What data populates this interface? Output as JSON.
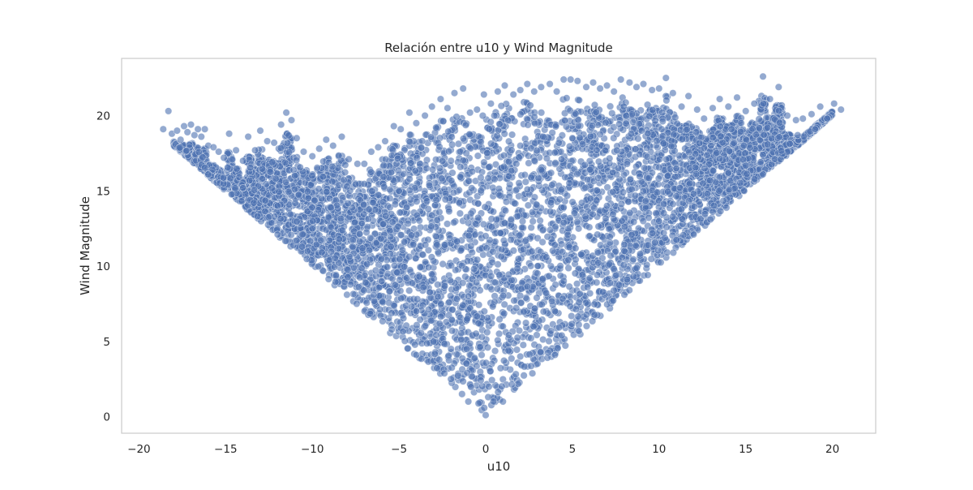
{
  "chart_data": {
    "type": "scatter",
    "title": "Relación entre u10 y Wind Magnitude",
    "xlabel": "u10",
    "ylabel": "Wind Magnitude",
    "xlim": [
      -21.0,
      22.5
    ],
    "ylim": [
      -1.1,
      23.8
    ],
    "xticks": [
      -20,
      -15,
      -10,
      -5,
      0,
      5,
      10,
      15,
      20
    ],
    "xtick_labels": [
      "−20",
      "−15",
      "−10",
      "−5",
      "0",
      "5",
      "10",
      "15",
      "20"
    ],
    "yticks": [
      0,
      5,
      10,
      15,
      20
    ],
    "ytick_labels": [
      "0",
      "5",
      "10",
      "15",
      "20"
    ],
    "grid": false,
    "legend": "none",
    "point_color": "#4c72b0",
    "point_edge_color": "#ffffff",
    "point_alpha": 0.6,
    "series": [
      {
        "values_note": "",
        "points": [
          [
            -18.6,
            19.1
          ],
          [
            -18.3,
            20.3
          ],
          [
            -18.1,
            18.8
          ],
          [
            -17.8,
            19.0
          ],
          [
            -17.6,
            18.4
          ],
          [
            -17.4,
            19.3
          ],
          [
            -17.2,
            18.9
          ],
          [
            -17.0,
            19.4
          ],
          [
            -16.8,
            18.7
          ],
          [
            -16.6,
            19.1
          ],
          [
            -16.4,
            18.6
          ],
          [
            -16.2,
            19.1
          ],
          [
            -16.0,
            18.0
          ],
          [
            -15.7,
            17.9
          ],
          [
            -15.4,
            17.6
          ],
          [
            -15.1,
            17.2
          ],
          [
            -14.8,
            18.8
          ],
          [
            -14.4,
            17.7
          ],
          [
            -14.0,
            17.0
          ],
          [
            -13.7,
            18.6
          ],
          [
            -13.3,
            17.7
          ],
          [
            -13.0,
            19.0
          ],
          [
            -12.6,
            18.3
          ],
          [
            -12.2,
            18.2
          ],
          [
            -11.8,
            19.4
          ],
          [
            -11.5,
            20.2
          ],
          [
            -11.2,
            19.7
          ],
          [
            -10.9,
            18.5
          ],
          [
            -10.5,
            17.6
          ],
          [
            -10.0,
            17.3
          ],
          [
            -9.6,
            17.8
          ],
          [
            -9.2,
            18.4
          ],
          [
            -8.8,
            18.0
          ],
          [
            -8.3,
            18.6
          ],
          [
            -7.9,
            17.1
          ],
          [
            -7.4,
            16.8
          ],
          [
            -7.0,
            16.8
          ],
          [
            -6.6,
            17.6
          ],
          [
            -6.2,
            17.9
          ],
          [
            -5.8,
            18.3
          ],
          [
            -5.3,
            19.3
          ],
          [
            -4.9,
            19.1
          ],
          [
            -4.4,
            20.2
          ],
          [
            -4.0,
            19.5
          ],
          [
            -3.5,
            20.0
          ],
          [
            -3.1,
            20.6
          ],
          [
            -2.6,
            21.1
          ],
          [
            -2.2,
            20.5
          ],
          [
            -1.8,
            21.5
          ],
          [
            -1.3,
            21.8
          ],
          [
            -0.9,
            20.2
          ],
          [
            -0.5,
            20.4
          ],
          [
            -0.1,
            21.4
          ],
          [
            0.3,
            20.8
          ],
          [
            0.7,
            21.6
          ],
          [
            1.1,
            22.0
          ],
          [
            1.6,
            21.4
          ],
          [
            2.0,
            21.7
          ],
          [
            2.4,
            22.1
          ],
          [
            2.8,
            21.6
          ],
          [
            3.2,
            21.9
          ],
          [
            3.7,
            22.1
          ],
          [
            4.1,
            21.6
          ],
          [
            4.5,
            22.4
          ],
          [
            4.9,
            22.4
          ],
          [
            5.3,
            22.3
          ],
          [
            5.8,
            21.9
          ],
          [
            6.2,
            22.2
          ],
          [
            6.6,
            21.8
          ],
          [
            7.0,
            22.0
          ],
          [
            7.4,
            21.6
          ],
          [
            7.8,
            22.4
          ],
          [
            8.3,
            22.2
          ],
          [
            8.7,
            21.9
          ],
          [
            9.1,
            22.1
          ],
          [
            9.6,
            21.7
          ],
          [
            10.0,
            21.8
          ],
          [
            10.4,
            22.5
          ],
          [
            10.8,
            21.5
          ],
          [
            11.3,
            20.6
          ],
          [
            11.7,
            21.3
          ],
          [
            12.2,
            20.4
          ],
          [
            12.6,
            19.8
          ],
          [
            13.1,
            20.5
          ],
          [
            13.5,
            21.1
          ],
          [
            14.0,
            20.6
          ],
          [
            14.5,
            21.2
          ],
          [
            15.0,
            20.3
          ],
          [
            15.5,
            20.8
          ],
          [
            16.0,
            22.6
          ],
          [
            16.4,
            21.1
          ],
          [
            16.9,
            21.9
          ],
          [
            17.4,
            20.0
          ],
          [
            17.9,
            19.7
          ],
          [
            18.3,
            19.8
          ],
          [
            18.8,
            20.1
          ],
          [
            19.3,
            20.6
          ],
          [
            19.7,
            19.8
          ],
          [
            20.1,
            20.8
          ],
          [
            20.5,
            20.4
          ],
          [
            -14.0,
            15.2
          ],
          [
            -12.0,
            14.0
          ],
          [
            -10.0,
            12.5
          ],
          [
            -8.0,
            11.0
          ],
          [
            -6.0,
            9.0
          ],
          [
            -4.0,
            7.0
          ],
          [
            -2.0,
            4.5
          ],
          [
            0.0,
            0.1
          ],
          [
            2.0,
            4.0
          ],
          [
            4.0,
            7.0
          ],
          [
            6.0,
            9.2
          ],
          [
            8.0,
            11.0
          ],
          [
            10.0,
            13.0
          ],
          [
            12.0,
            14.8
          ],
          [
            14.0,
            16.2
          ],
          [
            16.0,
            17.4
          ],
          [
            18.0,
            18.7
          ],
          [
            -16.0,
            16.1
          ],
          [
            -12.0,
            12.1
          ],
          [
            -8.0,
            8.1
          ],
          [
            -4.0,
            4.1
          ],
          [
            -1.0,
            1.0
          ],
          [
            1.0,
            1.0
          ],
          [
            4.0,
            4.1
          ],
          [
            8.0,
            8.1
          ],
          [
            12.0,
            12.1
          ],
          [
            16.0,
            16.1
          ],
          [
            19.0,
            19.1
          ],
          [
            -5.0,
            15.0
          ],
          [
            -2.0,
            17.0
          ],
          [
            0.0,
            12.0
          ],
          [
            2.0,
            18.0
          ],
          [
            5.0,
            18.5
          ],
          [
            7.0,
            14.0
          ],
          [
            9.0,
            19.0
          ],
          [
            11.0,
            16.5
          ],
          [
            13.0,
            18.0
          ],
          [
            -9.0,
            14.5
          ],
          [
            -11.0,
            16.0
          ],
          [
            3.0,
            10.0
          ],
          [
            -1.0,
            8.0
          ],
          [
            6.0,
            12.0
          ],
          [
            1.0,
            6.0
          ]
        ]
      }
    ]
  }
}
